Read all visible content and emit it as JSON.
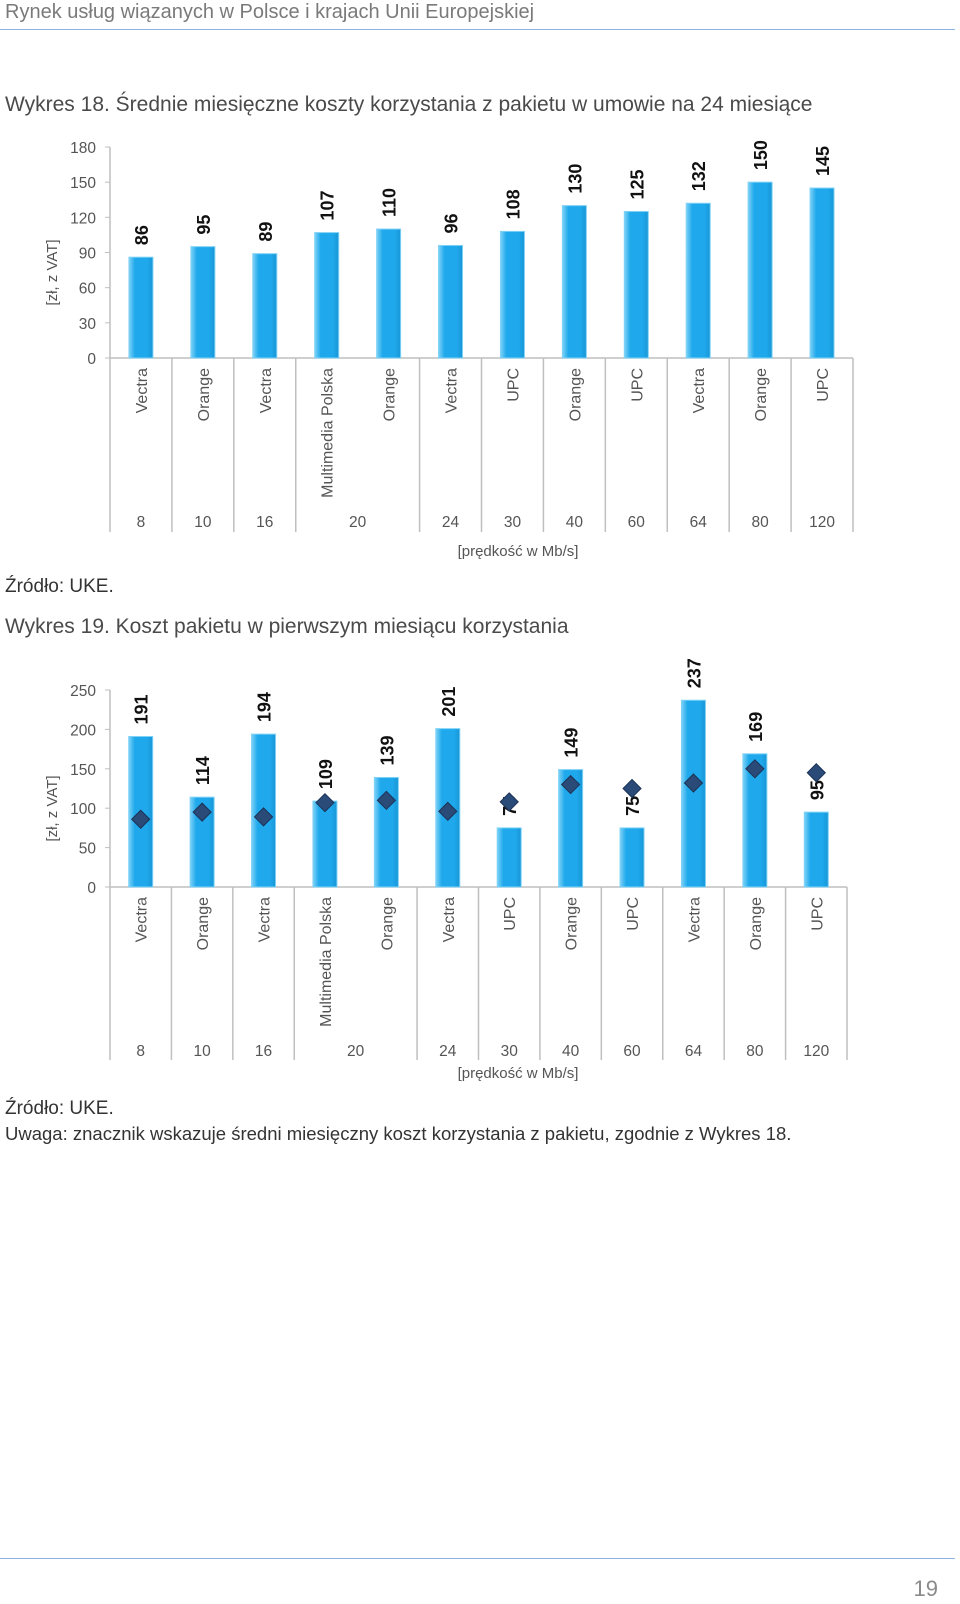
{
  "header": {
    "title": "Rynek usług wiązanych w Polsce i krajach Unii Europejskiej"
  },
  "chart1": {
    "caption": "Wykres 18. Średnie miesięczne koszty korzystania z pakietu w umowie na 24 miesiące"
  },
  "chart2": {
    "caption": "Wykres 19. Koszt pakietu w pierwszym miesiącu korzystania"
  },
  "source1": "Źródło: UKE.",
  "source2": "Źródło: UKE.",
  "note": "Uwaga: znacznik wskazuje średni miesięczny koszt korzystania z pakietu, zgodnie z Wykres 18.",
  "page_number": "19",
  "colors": {
    "bar": "#1fa9ec",
    "bar_edge": "#7fd2f7",
    "marker": "#2a4a78",
    "axis": "#bfbfbf"
  },
  "chart_data": [
    {
      "type": "bar",
      "title": "",
      "ylabel": "[zł, z VAT]",
      "xlabel": "[prędkość w Mb/s]",
      "ylim": [
        0,
        180
      ],
      "yticks": [
        0,
        30,
        60,
        90,
        120,
        150,
        180
      ],
      "categories": [
        "Vectra",
        "Orange",
        "Vectra",
        "Multimedia Polska",
        "Orange",
        "Vectra",
        "UPC",
        "Orange",
        "UPC",
        "Vectra",
        "Orange",
        "UPC"
      ],
      "speed_groups": [
        {
          "label": "8",
          "span": 1
        },
        {
          "label": "10",
          "span": 1
        },
        {
          "label": "16",
          "span": 1
        },
        {
          "label": "20",
          "span": 2
        },
        {
          "label": "24",
          "span": 1
        },
        {
          "label": "30",
          "span": 1
        },
        {
          "label": "40",
          "span": 1
        },
        {
          "label": "60",
          "span": 1
        },
        {
          "label": "64",
          "span": 1
        },
        {
          "label": "80",
          "span": 1
        },
        {
          "label": "120",
          "span": 1
        }
      ],
      "values": [
        86,
        95,
        89,
        107,
        110,
        96,
        108,
        130,
        125,
        132,
        150,
        145
      ],
      "data_labels": [
        "86",
        "95",
        "89",
        "107",
        "110",
        "96",
        "108",
        "130",
        "125",
        "132",
        "150",
        "145"
      ],
      "grid": false
    },
    {
      "type": "bar",
      "title": "",
      "ylabel": "[zł, z VAT]",
      "xlabel": "[prędkość w Mb/s]",
      "ylim": [
        0,
        250
      ],
      "yticks": [
        0,
        50,
        100,
        150,
        200,
        250
      ],
      "categories": [
        "Vectra",
        "Orange",
        "Vectra",
        "Multimedia Polska",
        "Orange",
        "Vectra",
        "UPC",
        "Orange",
        "UPC",
        "Vectra",
        "Orange",
        "UPC"
      ],
      "speed_groups": [
        {
          "label": "8",
          "span": 1
        },
        {
          "label": "10",
          "span": 1
        },
        {
          "label": "16",
          "span": 1
        },
        {
          "label": "20",
          "span": 2
        },
        {
          "label": "24",
          "span": 1
        },
        {
          "label": "30",
          "span": 1
        },
        {
          "label": "40",
          "span": 1
        },
        {
          "label": "60",
          "span": 1
        },
        {
          "label": "64",
          "span": 1
        },
        {
          "label": "80",
          "span": 1
        },
        {
          "label": "120",
          "span": 1
        }
      ],
      "values": [
        191,
        114,
        194,
        109,
        139,
        201,
        75,
        149,
        75,
        237,
        169,
        95
      ],
      "data_labels": [
        "191",
        "114",
        "194",
        "109",
        "139",
        "201",
        "75",
        "149",
        "75",
        "237",
        "169",
        "95"
      ],
      "markers": [
        86,
        95,
        89,
        107,
        110,
        96,
        108,
        130,
        125,
        132,
        150,
        145
      ],
      "grid": false
    }
  ]
}
